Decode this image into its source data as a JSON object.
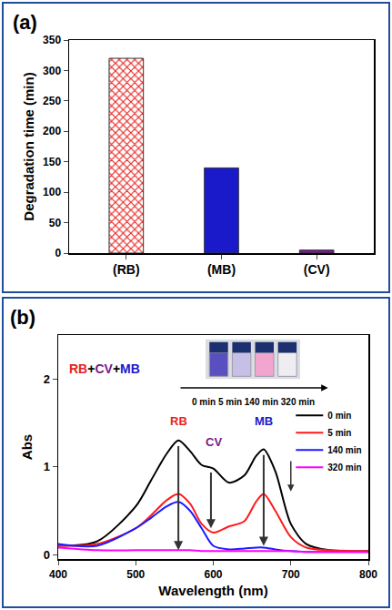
{
  "chart_data": [
    {
      "type": "bar",
      "panel_label": "(a)",
      "y_label": "Degradation time (min)",
      "categories": [
        "(RB)",
        "(MB)",
        "(CV)"
      ],
      "values": [
        320,
        140,
        5
      ],
      "colors": [
        "#e8231f",
        "#1a1acb",
        "#7a1a8c"
      ],
      "ylim": [
        0,
        350
      ],
      "yticks": [
        0,
        50,
        100,
        150,
        200,
        250,
        300,
        350
      ]
    },
    {
      "type": "line",
      "panel_label": "(b)",
      "title": "RB+CV+MB",
      "x_label": "Wavelength (nm)",
      "y_label": "Abs",
      "x": [
        400,
        450,
        500,
        520,
        540,
        555,
        570,
        585,
        600,
        620,
        640,
        655,
        665,
        680,
        700,
        720,
        750,
        800
      ],
      "series": [
        {
          "name": "0 min",
          "color": "#000000",
          "values": [
            0.1,
            0.15,
            0.55,
            0.85,
            1.15,
            1.3,
            1.18,
            1.02,
            0.98,
            0.82,
            0.9,
            1.12,
            1.2,
            0.95,
            0.35,
            0.12,
            0.05,
            0.04
          ]
        },
        {
          "name": "5 min",
          "color": "#ff1a1a",
          "values": [
            0.1,
            0.12,
            0.3,
            0.45,
            0.62,
            0.69,
            0.58,
            0.35,
            0.25,
            0.32,
            0.38,
            0.6,
            0.69,
            0.5,
            0.2,
            0.08,
            0.05,
            0.04
          ]
        },
        {
          "name": "140 min",
          "color": "#1a1aff",
          "values": [
            0.12,
            0.1,
            0.3,
            0.42,
            0.55,
            0.6,
            0.5,
            0.3,
            0.1,
            0.06,
            0.07,
            0.08,
            0.08,
            0.06,
            0.04,
            0.03,
            0.03,
            0.03
          ]
        },
        {
          "name": "320 min",
          "color": "#ff00ff",
          "values": [
            0.08,
            0.05,
            0.05,
            0.05,
            0.05,
            0.05,
            0.05,
            0.04,
            0.04,
            0.04,
            0.04,
            0.04,
            0.04,
            0.04,
            0.04,
            0.03,
            0.03,
            0.03
          ]
        }
      ],
      "xlim": [
        400,
        800
      ],
      "ylim": [
        -0.05,
        2.5
      ],
      "xticks": [
        400,
        500,
        600,
        700,
        800
      ],
      "yticks": [
        0,
        1,
        2
      ],
      "legend": "right",
      "annotations": [
        {
          "text": "RB",
          "color": "#e8231f"
        },
        {
          "text": "CV",
          "color": "#7a1a8c"
        },
        {
          "text": "MB",
          "color": "#1a1acb"
        }
      ]
    }
  ]
}
